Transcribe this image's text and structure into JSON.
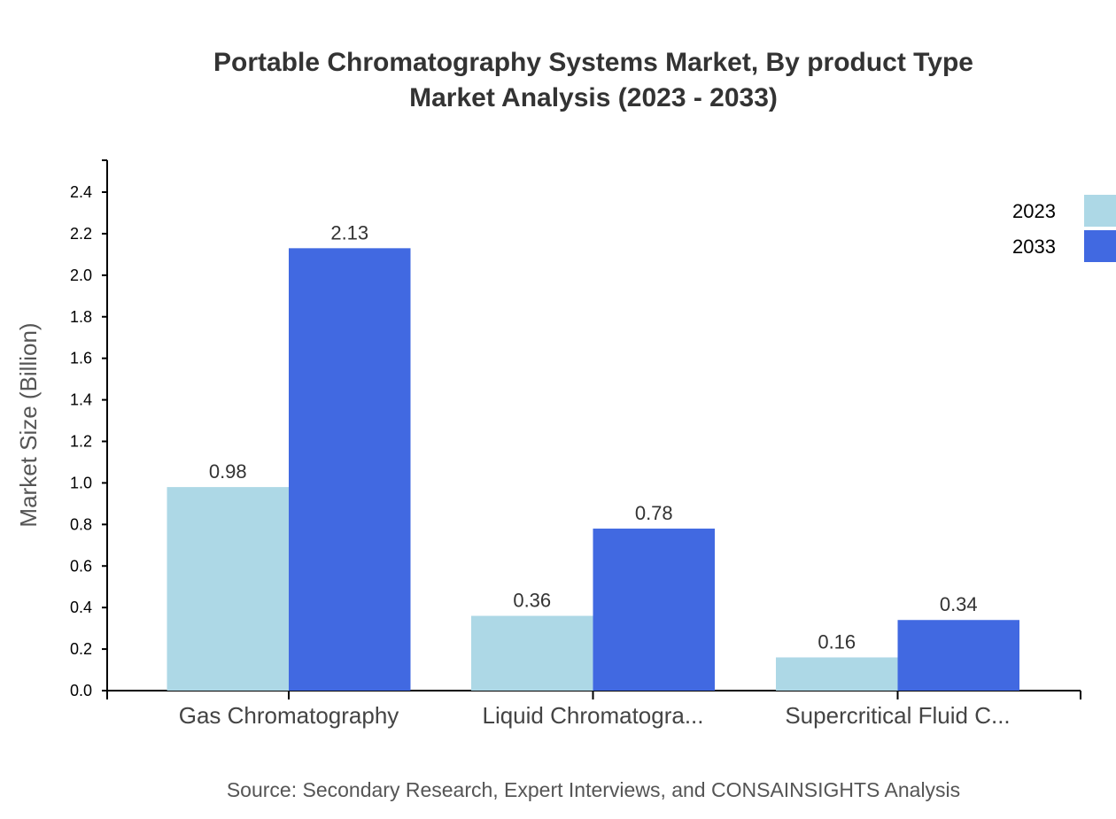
{
  "chart_data": {
    "type": "bar",
    "title": "Portable Chromatography Systems Market, By product Type",
    "subtitle": "Market Analysis (2023 - 2033)",
    "ylabel": "Market Size (Billion)",
    "xlabel": "",
    "categories": [
      "Gas Chromatography",
      "Liquid Chromatogra...",
      "Supercritical Fluid C..."
    ],
    "series": [
      {
        "name": "2023",
        "color": "#add8e6",
        "values": [
          0.98,
          0.36,
          0.16
        ]
      },
      {
        "name": "2033",
        "color": "#4169e1",
        "values": [
          2.13,
          0.78,
          0.34
        ]
      }
    ],
    "ylim": [
      0,
      2.55
    ],
    "yticks": [
      "0.0",
      "0.2",
      "0.4",
      "0.6",
      "0.8",
      "1.0",
      "1.2",
      "1.4",
      "1.6",
      "1.8",
      "2.0",
      "2.2",
      "2.4"
    ],
    "grid": false,
    "legend": "top-right",
    "source": "Source: Secondary Research, Expert Interviews, and CONSAINSIGHTS Analysis"
  }
}
